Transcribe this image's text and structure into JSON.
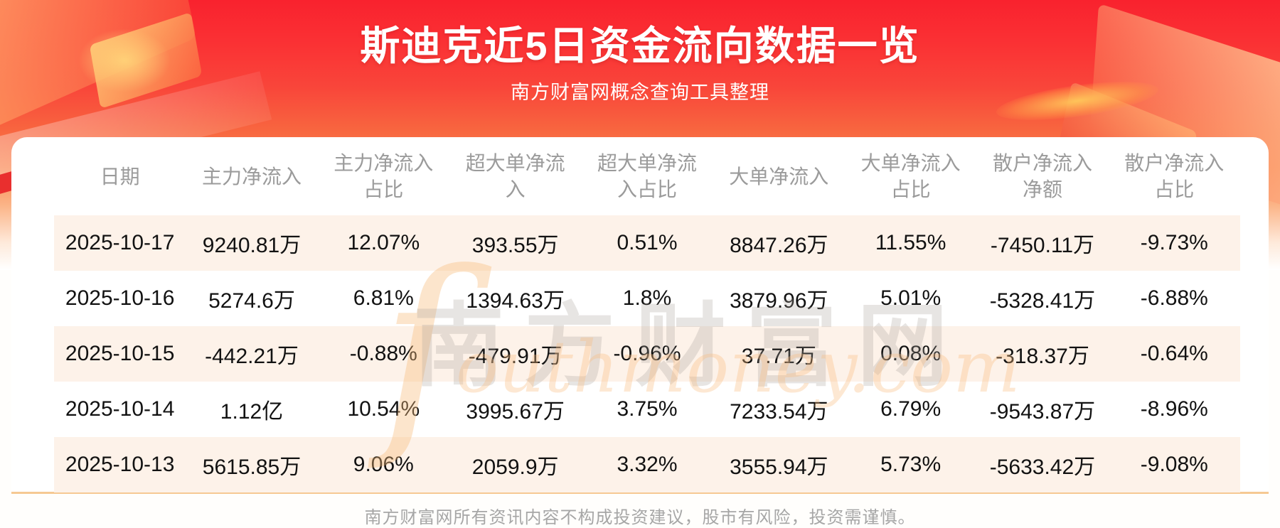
{
  "page": {
    "title": "斯迪克近5日资金流向数据一览",
    "subtitle": "南方财富网概念查询工具整理",
    "disclaimer": "南方财富网所有资讯内容不构成投资建议，股市有风险，投资需谨慎。"
  },
  "watermark": {
    "cn": "南方财富网",
    "en_initial": "ſ",
    "en_rest": "outhmoney.com"
  },
  "table": {
    "columns": [
      "日期",
      "主力净流入",
      "主力净流入占比",
      "超大单净流入",
      "超大单净流入占比",
      "大单净流入",
      "大单净流入占比",
      "散户净流入净额",
      "散户净流入占比"
    ],
    "rows": [
      [
        "2025-10-17",
        "9240.81万",
        "12.07%",
        "393.55万",
        "0.51%",
        "8847.26万",
        "11.55%",
        "-7450.11万",
        "-9.73%"
      ],
      [
        "2025-10-16",
        "5274.6万",
        "6.81%",
        "1394.63万",
        "1.8%",
        "3879.96万",
        "5.01%",
        "-5328.41万",
        "-6.88%"
      ],
      [
        "2025-10-15",
        "-442.21万",
        "-0.88%",
        "-479.91万",
        "-0.96%",
        "37.71万",
        "0.08%",
        "-318.37万",
        "-0.64%"
      ],
      [
        "2025-10-14",
        "1.12亿",
        "10.54%",
        "3995.67万",
        "3.75%",
        "7233.54万",
        "6.79%",
        "-9543.87万",
        "-8.96%"
      ],
      [
        "2025-10-13",
        "5615.85万",
        "9.06%",
        "2059.9万",
        "3.32%",
        "3555.94万",
        "5.73%",
        "-5633.42万",
        "-9.08%"
      ]
    ]
  },
  "colors": {
    "hero_red_top": "#f9222e",
    "hero_orange": "#f9854f",
    "row_stripe": "#fdf2e9",
    "card_bottom_line": "#f6c993",
    "header_text": "#9b9b9b",
    "cell_text": "#121212",
    "title_text": "#ffffff",
    "footer_text": "#a6a6a6"
  },
  "chart_data": {
    "type": "table",
    "title": "斯迪克近5日资金流向数据一览",
    "subtitle": "南方财富网概念查询工具整理",
    "columns": [
      "日期",
      "主力净流入",
      "主力净流入占比",
      "超大单净流入",
      "超大单净流入占比",
      "大单净流入",
      "大单净流入占比",
      "散户净流入净额",
      "散户净流入占比"
    ],
    "rows": [
      [
        "2025-10-17",
        "9240.81万",
        "12.07%",
        "393.55万",
        "0.51%",
        "8847.26万",
        "11.55%",
        "-7450.11万",
        "-9.73%"
      ],
      [
        "2025-10-16",
        "5274.6万",
        "6.81%",
        "1394.63万",
        "1.8%",
        "3879.96万",
        "5.01%",
        "-5328.41万",
        "-6.88%"
      ],
      [
        "2025-10-15",
        "-442.21万",
        "-0.88%",
        "-479.91万",
        "-0.96%",
        "37.71万",
        "0.08%",
        "-318.37万",
        "-0.64%"
      ],
      [
        "2025-10-14",
        "1.12亿",
        "10.54%",
        "3995.67万",
        "3.75%",
        "7233.54万",
        "6.79%",
        "-9543.87万",
        "-8.96%"
      ],
      [
        "2025-10-13",
        "5615.85万",
        "9.06%",
        "2059.9万",
        "3.32%",
        "3555.94万",
        "5.73%",
        "-5633.42万",
        "-9.08%"
      ]
    ],
    "footnote": "南方财富网所有资讯内容不构成投资建议，股市有风险，投资需谨慎。"
  }
}
